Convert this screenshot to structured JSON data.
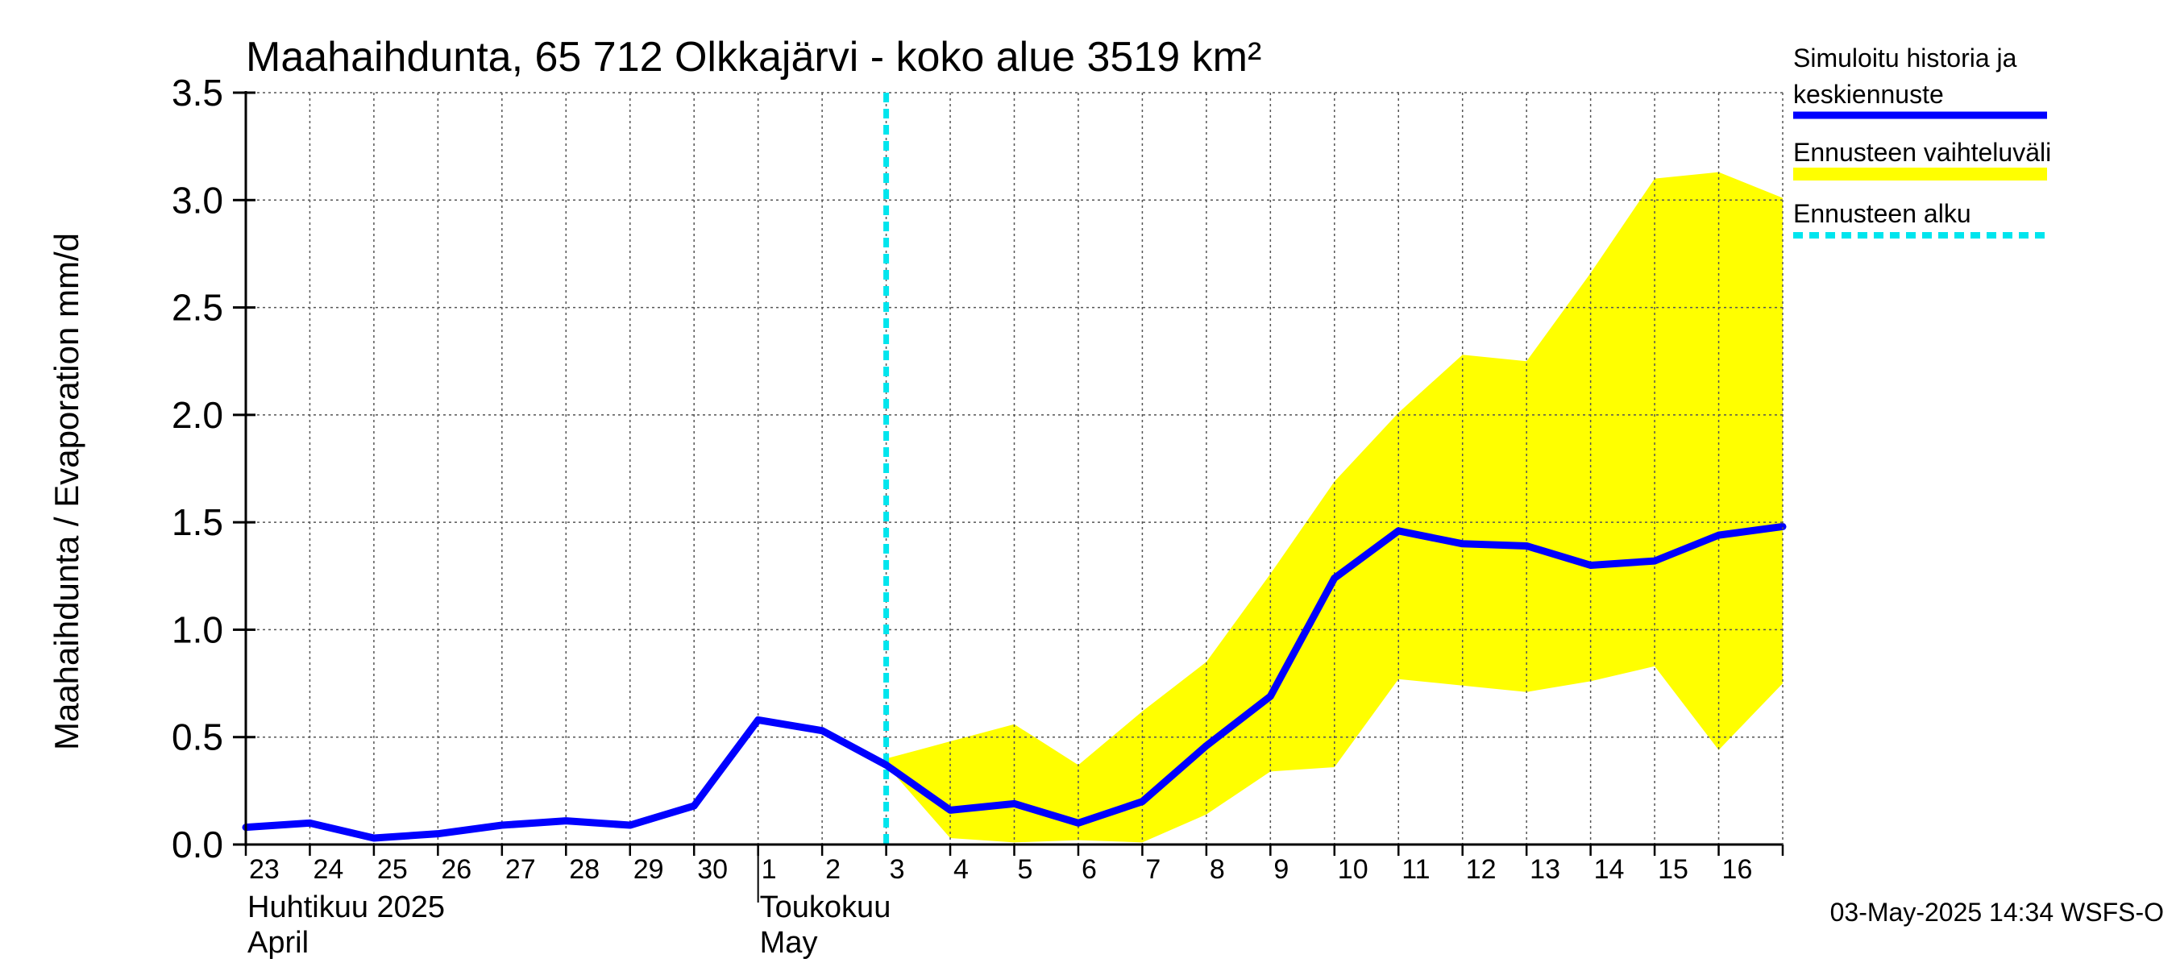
{
  "chart_data": {
    "type": "line",
    "title": "Maahaihdunta, 65 712 Olkkajärvi - koko alue 3519 km²",
    "ylabel": "Maahaihdunta / Evaporation   mm/d",
    "ylim": [
      0.0,
      3.5
    ],
    "yticks": [
      "0.0",
      "0.5",
      "1.0",
      "1.5",
      "2.0",
      "2.5",
      "3.0",
      "3.5"
    ],
    "grid": true,
    "x_dates": [
      "2025-04-23",
      "2025-04-24",
      "2025-04-25",
      "2025-04-26",
      "2025-04-27",
      "2025-04-28",
      "2025-04-29",
      "2025-04-30",
      "2025-05-01",
      "2025-05-02",
      "2025-05-03",
      "2025-05-04",
      "2025-05-05",
      "2025-05-06",
      "2025-05-07",
      "2025-05-08",
      "2025-05-09",
      "2025-05-10",
      "2025-05-11",
      "2025-05-12",
      "2025-05-13",
      "2025-05-14",
      "2025-05-15",
      "2025-05-16",
      "2025-05-17"
    ],
    "xtick_labels": [
      "23",
      "24",
      "25",
      "26",
      "27",
      "28",
      "29",
      "30",
      "1",
      "2",
      "3",
      "4",
      "5",
      "6",
      "7",
      "8",
      "9",
      "10",
      "11",
      "12",
      "13",
      "14",
      "15",
      "16"
    ],
    "month_labels": [
      {
        "line1": "Huhtikuu  2025",
        "line2": "April",
        "start_date": "2025-04-23"
      },
      {
        "line1": "Toukokuu",
        "line2": "May",
        "start_date": "2025-05-01"
      }
    ],
    "series": [
      {
        "name": "Simuloitu historia ja keskiennuste",
        "color": "#0000ff",
        "values": [
          0.08,
          0.1,
          0.03,
          0.05,
          0.09,
          0.11,
          0.09,
          0.18,
          0.58,
          0.53,
          0.37,
          0.16,
          0.19,
          0.1,
          0.2,
          0.46,
          0.69,
          1.24,
          1.46,
          1.4,
          1.39,
          1.3,
          1.32,
          1.44,
          1.48
        ]
      }
    ],
    "band": {
      "name": "Ennusteen vaihteluväli",
      "color": "#ffff00",
      "start_date": "2025-05-03",
      "lower": [
        0.37,
        0.03,
        0.01,
        0.02,
        0.01,
        0.14,
        0.34,
        0.36,
        0.77,
        0.74,
        0.71,
        0.76,
        0.83,
        0.44,
        0.75
      ],
      "upper": [
        0.4,
        0.48,
        0.56,
        0.37,
        0.62,
        0.85,
        1.26,
        1.69,
        2.01,
        2.28,
        2.25,
        2.66,
        3.1,
        3.13,
        3.01
      ]
    },
    "forecast_start": {
      "name": "Ennusteen alku",
      "color": "#00e5ee",
      "date": "2025-05-03"
    },
    "legend": {
      "position": "right",
      "entries": [
        {
          "line1": "Simuloitu historia ja",
          "line2": "keskiennuste",
          "style": "solid",
          "color": "#0000ff"
        },
        {
          "line1": "Ennusteen vaihteluväli",
          "line2": "",
          "style": "band",
          "color": "#ffff00"
        },
        {
          "line1": "Ennusteen alku",
          "line2": "",
          "style": "dashed",
          "color": "#00e5ee"
        }
      ]
    },
    "footer": "03-May-2025 14:34 WSFS-O"
  }
}
